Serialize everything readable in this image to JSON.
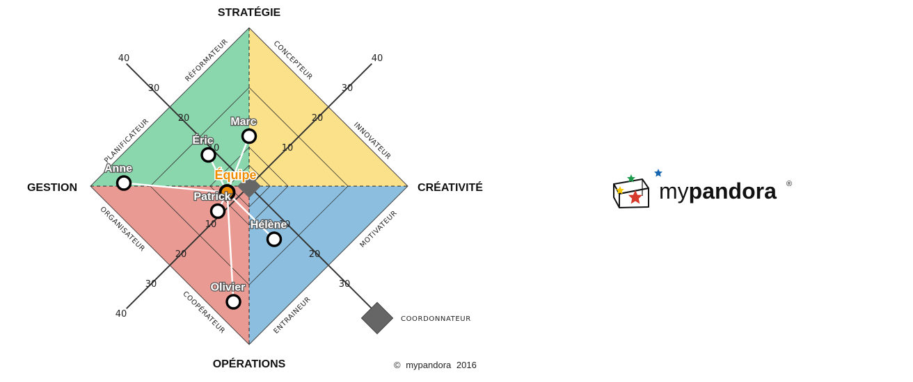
{
  "axes": {
    "top": "STRATÉGIE",
    "left": "GESTION",
    "right": "CRÉATIVITÉ",
    "bottom": "OPÉRATIONS"
  },
  "roles": {
    "reformateur": "RÉFORMATEUR",
    "concepteur": "CONCEPTEUR",
    "planificateur": "PLANIFICATEUR",
    "innovateur": "INNOVATEUR",
    "organisateur": "ORGANISATEUR",
    "motivateur": "MOTIVATEUR",
    "cooperateur": "COOPÉRATEUR",
    "entraineur": "ENTRAINEUR"
  },
  "ticks": [
    "10",
    "20",
    "30",
    "40"
  ],
  "colors": {
    "strategie_gestion": "#8ad6ad",
    "strategie_creativite": "#fbe18a",
    "gestion_operations": "#e99a93",
    "creativite_operations": "#8cbfdf",
    "coordinator": "#666666",
    "team": "#f08c00",
    "star_green": "#1a9a4a",
    "star_blue": "#1565b0",
    "star_yellow": "#f5c800",
    "star_red": "#d63a2a"
  },
  "people": [
    {
      "name": "Marc",
      "x": 0,
      "y": 16
    },
    {
      "name": "Éric",
      "x": -13,
      "y": 10
    },
    {
      "name": "Anne",
      "x": -40,
      "y": 1
    },
    {
      "name": "Patrick",
      "x": -10,
      "y": -8
    },
    {
      "name": "Olivier",
      "x": -5,
      "y": -37
    },
    {
      "name": "Hélène",
      "x": 8,
      "y": -17
    }
  ],
  "team": {
    "name": "Équipe",
    "x": -7,
    "y": -2
  },
  "legend": {
    "coordinator": "COORDONNATEUR"
  },
  "copyright": {
    "symbol": "©",
    "brand": "mypandora",
    "year": "2016"
  },
  "logo": {
    "prefix": "my",
    "brand": "pandora",
    "registered": "®"
  }
}
